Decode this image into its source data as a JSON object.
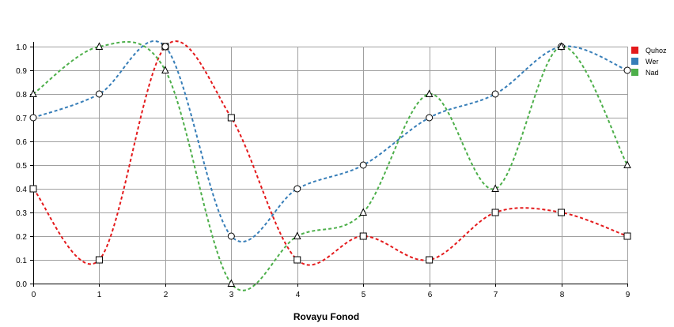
{
  "chart_data": {
    "type": "line",
    "title": "",
    "xlabel": "Rovayu Fonod",
    "ylabel": "",
    "x": [
      0,
      1,
      2,
      3,
      4,
      5,
      6,
      7,
      8,
      9
    ],
    "xlim": [
      0,
      9
    ],
    "ylim": [
      0,
      1
    ],
    "x_ticks": [
      "0",
      "1",
      "2",
      "3",
      "4",
      "5",
      "6",
      "7",
      "8",
      "9"
    ],
    "y_ticks": [
      "0.0",
      "0.1",
      "0.2",
      "0.3",
      "0.4",
      "0.5",
      "0.6",
      "0.7",
      "0.8",
      "0.9",
      "1.0"
    ],
    "grid": true,
    "legend_position": "top-right",
    "series": [
      {
        "name": "Quhoz",
        "color": "#e41a1c",
        "marker": "square",
        "values": [
          0.4,
          0.1,
          1.0,
          0.7,
          0.1,
          0.2,
          0.1,
          0.3,
          0.3,
          0.2
        ]
      },
      {
        "name": "Wer",
        "color": "#377eb8",
        "marker": "circle",
        "values": [
          0.7,
          0.8,
          1.0,
          0.2,
          0.4,
          0.5,
          0.7,
          0.8,
          1.0,
          0.9
        ]
      },
      {
        "name": "Nad",
        "color": "#4daf4a",
        "marker": "triangle",
        "values": [
          0.8,
          1.0,
          0.9,
          0.0,
          0.2,
          0.3,
          0.8,
          0.4,
          1.0,
          0.5
        ]
      }
    ]
  }
}
